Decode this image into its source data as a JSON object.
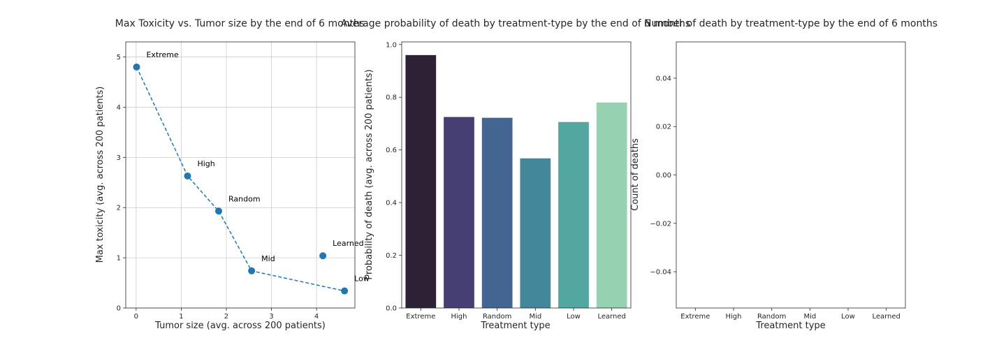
{
  "chart_data": [
    {
      "type": "scatter",
      "title": "Max Toxicity vs. Tumor size by the end of 6 months",
      "xlabel": "Tumor size (avg. across 200 patients)",
      "ylabel": "Max toxicity (avg. across 200 patients)",
      "xlim": [
        -0.23,
        4.85
      ],
      "ylim": [
        0,
        5.3
      ],
      "xticks": [
        0,
        1,
        2,
        3,
        4
      ],
      "yticks": [
        0,
        1,
        2,
        3,
        4,
        5
      ],
      "grid": true,
      "points": [
        {
          "label": "Extreme",
          "x": 0.01,
          "y": 4.8
        },
        {
          "label": "High",
          "x": 1.14,
          "y": 2.63
        },
        {
          "label": "Random",
          "x": 1.83,
          "y": 1.93
        },
        {
          "label": "Mid",
          "x": 2.56,
          "y": 0.74
        },
        {
          "label": "Learned",
          "x": 4.14,
          "y": 1.04
        },
        {
          "label": "Low",
          "x": 4.62,
          "y": 0.34
        }
      ],
      "line_order": [
        "Extreme",
        "High",
        "Random",
        "Mid",
        "Low"
      ],
      "color": "#1f77b4"
    },
    {
      "type": "bar",
      "title": "Average probability of death by treatment-type by the end of 6 months",
      "xlabel": "Treatment type",
      "ylabel": "Probability of death (avg. across 200 patients)",
      "categories": [
        "Extreme",
        "High",
        "Random",
        "Mid",
        "Low",
        "Learned"
      ],
      "values": [
        0.96,
        0.725,
        0.722,
        0.568,
        0.706,
        0.78
      ],
      "colors": [
        "#2c2135",
        "#463f74",
        "#436592",
        "#42889a",
        "#52a8a1",
        "#96d1b2"
      ],
      "ylim": [
        0,
        1.01
      ],
      "yticks": [
        "0.0",
        "0.2",
        "0.4",
        "0.6",
        "0.8",
        "1.0"
      ],
      "grid": false
    },
    {
      "type": "bar",
      "title": "Number of death by treatment-type by the end of 6 months",
      "xlabel": "Treatment type",
      "ylabel": "Count of deaths",
      "categories": [
        "Extreme",
        "High",
        "Random",
        "Mid",
        "Low",
        "Learned"
      ],
      "values": [
        0,
        0,
        0,
        0,
        0,
        0
      ],
      "ylim": [
        -0.055,
        0.055
      ],
      "yticks": [
        "−0.04",
        "−0.02",
        "0.00",
        "0.02",
        "0.04"
      ],
      "grid": false
    }
  ]
}
